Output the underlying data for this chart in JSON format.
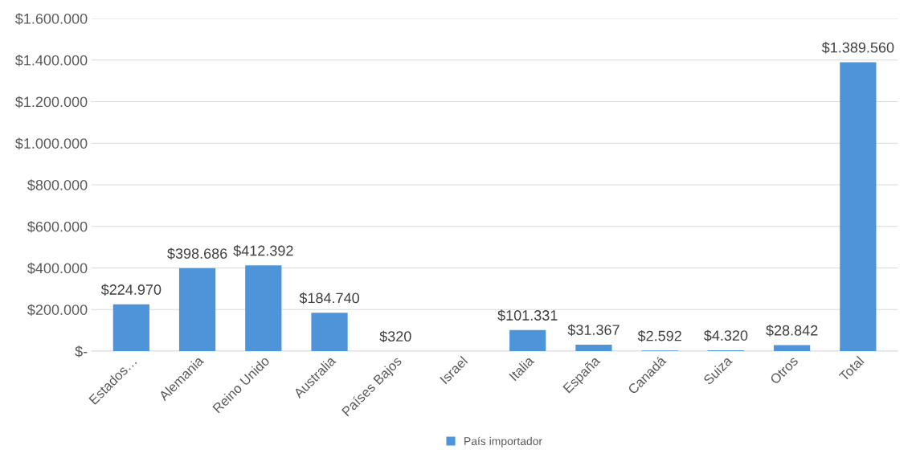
{
  "chart_data": {
    "type": "bar",
    "categories": [
      "Estados…",
      "Alemania",
      "Reino Unido",
      "Australia",
      "Países Bajos",
      "Israel",
      "Italia",
      "España",
      "Canadá",
      "Suiza",
      "Otros",
      "Total"
    ],
    "series": [
      {
        "name": "País importador",
        "color": "#4d94d8",
        "values": [
          224970,
          398686,
          412392,
          184740,
          320,
          null,
          101331,
          31367,
          2592,
          4320,
          28842,
          1389560
        ],
        "value_labels": [
          "$224.970",
          "$398.686",
          "$412.392",
          "$184.740",
          "$320",
          null,
          "$101.331",
          "$31.367",
          "$2.592",
          "$4.320",
          "$28.842",
          "$1.389.560"
        ]
      }
    ],
    "ylim": [
      0,
      1600000
    ],
    "yticks": [
      {
        "value": 0,
        "label": "$-"
      },
      {
        "value": 200000,
        "label": "$200.000"
      },
      {
        "value": 400000,
        "label": "$400.000"
      },
      {
        "value": 600000,
        "label": "$600.000"
      },
      {
        "value": 800000,
        "label": "$800.000"
      },
      {
        "value": 1000000,
        "label": "$1.000.000"
      },
      {
        "value": 1200000,
        "label": "$1.200.000"
      },
      {
        "value": 1400000,
        "label": "$1.400.000"
      },
      {
        "value": 1600000,
        "label": "$1.600.000"
      }
    ],
    "grid": "y",
    "legend": "bottom"
  }
}
